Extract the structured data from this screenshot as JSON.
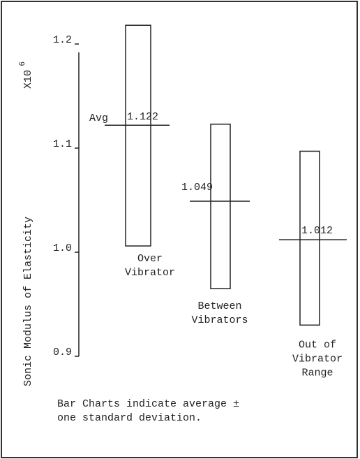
{
  "chart_data": {
    "type": "range-bar",
    "ylabel": "Sonic Modulus of Elasticity",
    "ylabel_multiplier": "X10",
    "ylabel_exponent": "6",
    "categories": [
      [
        "Over",
        "Vibrator"
      ],
      [
        "Between",
        "Vibrators"
      ],
      [
        "Out of",
        "Vibrator",
        "Range"
      ]
    ],
    "low": [
      1.006,
      0.965,
      0.93
    ],
    "high": [
      1.218,
      1.123,
      1.097
    ],
    "values": [
      1.122,
      1.049,
      1.012
    ],
    "avg_label": "Avg",
    "ylim": [
      0.9,
      1.2
    ],
    "yticks": [
      0.9,
      {
        "value": 1,
        "label": "1.0"
      },
      1.1,
      1.2
    ],
    "color": "#222",
    "footnote": [
      "Bar Charts indicate average ±",
      "one standard deviation."
    ]
  }
}
